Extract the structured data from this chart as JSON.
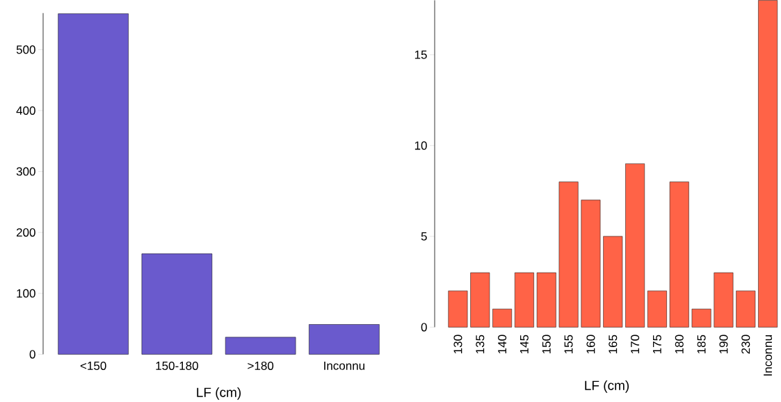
{
  "chart_data": [
    {
      "type": "bar",
      "xlabel": "LF (cm)",
      "categories": [
        "<150",
        "150-180",
        ">180",
        "Inconnu"
      ],
      "values": [
        559,
        165,
        28,
        49
      ],
      "color": "#6a5acd",
      "ylim": [
        0,
        560
      ],
      "yticks": [
        0,
        100,
        200,
        300,
        400,
        500
      ]
    },
    {
      "type": "bar",
      "xlabel": "LF (cm)",
      "categories": [
        "130",
        "135",
        "140",
        "145",
        "150",
        "155",
        "160",
        "165",
        "170",
        "175",
        "180",
        "185",
        "190",
        "230",
        "Inconnu"
      ],
      "values": [
        2,
        3,
        1,
        3,
        3,
        8,
        7,
        5,
        9,
        2,
        8,
        1,
        3,
        2,
        18
      ],
      "color": "#ff6347",
      "ylim": [
        0,
        18
      ],
      "yticks": [
        0,
        5,
        10,
        15
      ]
    }
  ]
}
